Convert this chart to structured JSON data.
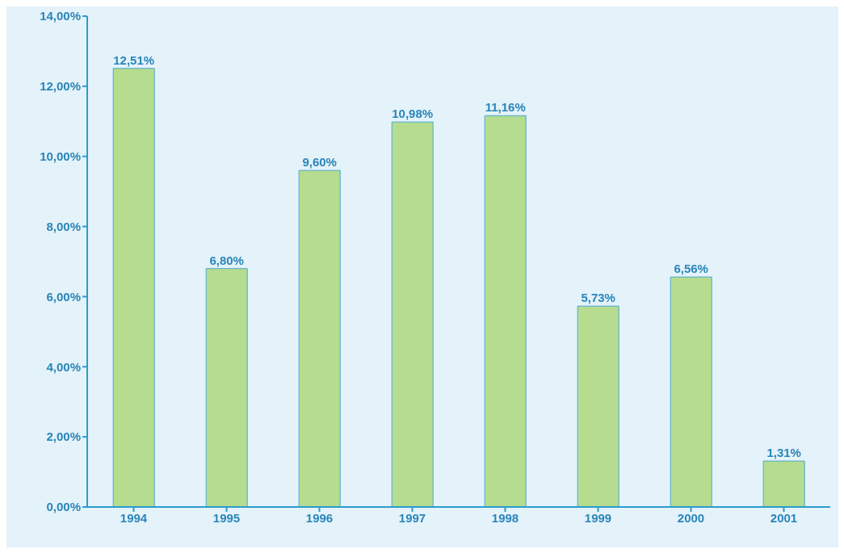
{
  "chart_data": {
    "type": "bar",
    "categories": [
      "1994",
      "1995",
      "1996",
      "1997",
      "1998",
      "1999",
      "2000",
      "2001"
    ],
    "values": [
      12.51,
      6.8,
      9.6,
      10.98,
      11.16,
      5.73,
      6.56,
      1.31
    ],
    "value_labels": [
      "12,51%",
      "6,80%",
      "9,60%",
      "10,98%",
      "11,16%",
      "5,73%",
      "6,56%",
      "1,31%"
    ],
    "color": "#b5dc8f",
    "ylim": [
      0,
      14
    ],
    "yticks": [
      {
        "value": 0,
        "label": "0,00%"
      },
      {
        "value": 2,
        "label": "2,00%"
      },
      {
        "value": 4,
        "label": "4,00%"
      },
      {
        "value": 6,
        "label": "6,00%"
      },
      {
        "value": 8,
        "label": "8,00%"
      },
      {
        "value": 10,
        "label": "10,00%"
      },
      {
        "value": 12,
        "label": "12,00%"
      },
      {
        "value": 14,
        "label": "14,00%"
      }
    ]
  }
}
